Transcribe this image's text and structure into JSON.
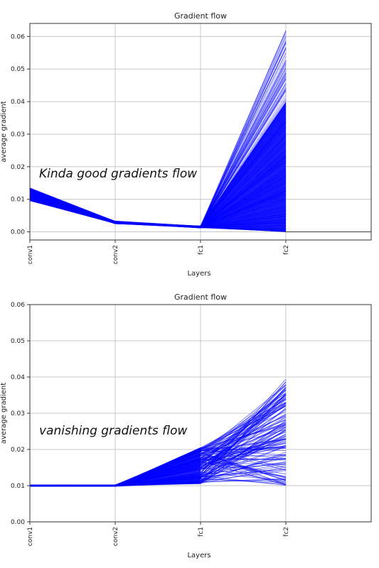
{
  "chart_data": [
    {
      "type": "line",
      "title": "Gradient flow",
      "xlabel": "Layers",
      "ylabel": "average gradient",
      "categories": [
        "conv1",
        "conv2",
        "fc1",
        "fc2"
      ],
      "yticks": [
        "0.00",
        "0.01",
        "0.02",
        "0.03",
        "0.04",
        "0.05",
        "0.06"
      ],
      "ylim": [
        -0.0025,
        0.064
      ],
      "xlim": [
        0,
        4
      ],
      "grid": true,
      "line_color": "#0000ff",
      "zero_line_color": "#555555",
      "annotation": "Kinda good gradients flow",
      "series_envelope": {
        "conv1": [
          0.0095,
          0.0135
        ],
        "conv2": [
          0.0025,
          0.0033
        ],
        "fc1": [
          0.0012,
          0.0018
        ],
        "fc2": [
          0.0,
          0.062
        ]
      },
      "num_lines": 220
    },
    {
      "type": "line",
      "title": "Gradient flow",
      "xlabel": "Layers",
      "ylabel": "average gradient",
      "categories": [
        "conv1",
        "conv2",
        "fc1",
        "fc2"
      ],
      "yticks": [
        "0.00",
        "0.01",
        "0.02",
        "0.03",
        "0.04",
        "0.05",
        "0.06"
      ],
      "ylim": [
        0,
        0.06
      ],
      "xlim": [
        0,
        4
      ],
      "grid": true,
      "line_color": "#0000ff",
      "annotation": "vanishing gradients flow",
      "series_envelope": {
        "conv1": [
          0.0098,
          0.0102
        ],
        "conv2": [
          0.0098,
          0.0102
        ],
        "fc1": [
          0.0105,
          0.0205
        ],
        "fc2": [
          0.01,
          0.0395
        ]
      },
      "num_lines": 140
    }
  ]
}
